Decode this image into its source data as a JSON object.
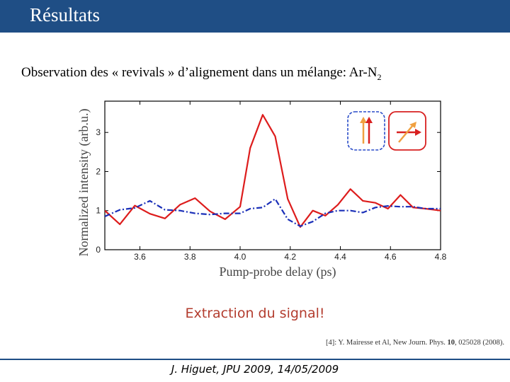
{
  "slide": {
    "title": "Résultats",
    "subtitle_main": "Observation des « revivals » d’alignement dans un mélange: Ar-N",
    "subtitle_sub": "2",
    "extraction_text": "Extraction du signal!",
    "reference_prefix": "[4]: Y. Mairesse et Al, New Journ. Phys. ",
    "reference_volume": "10",
    "reference_suffix": ", 025028 (2008).",
    "footer": "J. Higuet, JPU 2009, 14/05/2009"
  },
  "chart_data": {
    "type": "line",
    "title": "",
    "xlabel": "Pump-probe delay (ps)",
    "ylabel": "Normalized intensity (arb.u.)",
    "xlim": [
      3.46,
      4.8
    ],
    "ylim": [
      0,
      3.8
    ],
    "x_ticks": [
      3.6,
      3.8,
      4.0,
      4.2,
      4.4,
      4.6,
      4.8
    ],
    "x_tick_labels": [
      "3.6",
      "3.8",
      "4.0",
      "4.2",
      "4.4",
      "4.6",
      "4.8"
    ],
    "y_ticks": [
      0,
      1,
      2,
      3
    ],
    "y_tick_labels": [
      "0",
      "1",
      "2",
      "3"
    ],
    "grid": false,
    "colors": {
      "red": "#dd1c1c",
      "blue": "#1a2fb8",
      "inset_blue": "#2a4cc8",
      "inset_red": "#d82020",
      "arrow_orange": "#f0a040"
    },
    "series": [
      {
        "color": "#dd1c1c",
        "style": "solid",
        "x": [
          3.46,
          3.52,
          3.58,
          3.64,
          3.7,
          3.76,
          3.82,
          3.88,
          3.94,
          4.0,
          4.04,
          4.09,
          4.14,
          4.19,
          4.24,
          4.29,
          4.34,
          4.39,
          4.44,
          4.49,
          4.54,
          4.59,
          4.64,
          4.69,
          4.74,
          4.8
        ],
        "y": [
          1.0,
          0.65,
          1.13,
          0.92,
          0.8,
          1.15,
          1.32,
          0.98,
          0.78,
          1.1,
          2.6,
          3.45,
          2.9,
          1.3,
          0.58,
          1.0,
          0.87,
          1.15,
          1.55,
          1.25,
          1.2,
          1.05,
          1.4,
          1.08,
          1.05,
          1.0
        ]
      },
      {
        "color": "#1a2fb8",
        "style": "dashdot",
        "x": [
          3.46,
          3.52,
          3.58,
          3.64,
          3.7,
          3.76,
          3.82,
          3.88,
          3.94,
          4.0,
          4.04,
          4.09,
          4.14,
          4.19,
          4.24,
          4.29,
          4.34,
          4.39,
          4.44,
          4.49,
          4.54,
          4.59,
          4.64,
          4.69,
          4.74,
          4.8
        ],
        "y": [
          0.85,
          1.02,
          1.07,
          1.25,
          1.02,
          1.0,
          0.93,
          0.9,
          0.93,
          0.93,
          1.05,
          1.08,
          1.3,
          0.78,
          0.6,
          0.72,
          0.93,
          1.0,
          1.0,
          0.95,
          1.08,
          1.12,
          1.1,
          1.1,
          1.05,
          1.05
        ]
      }
    ]
  }
}
